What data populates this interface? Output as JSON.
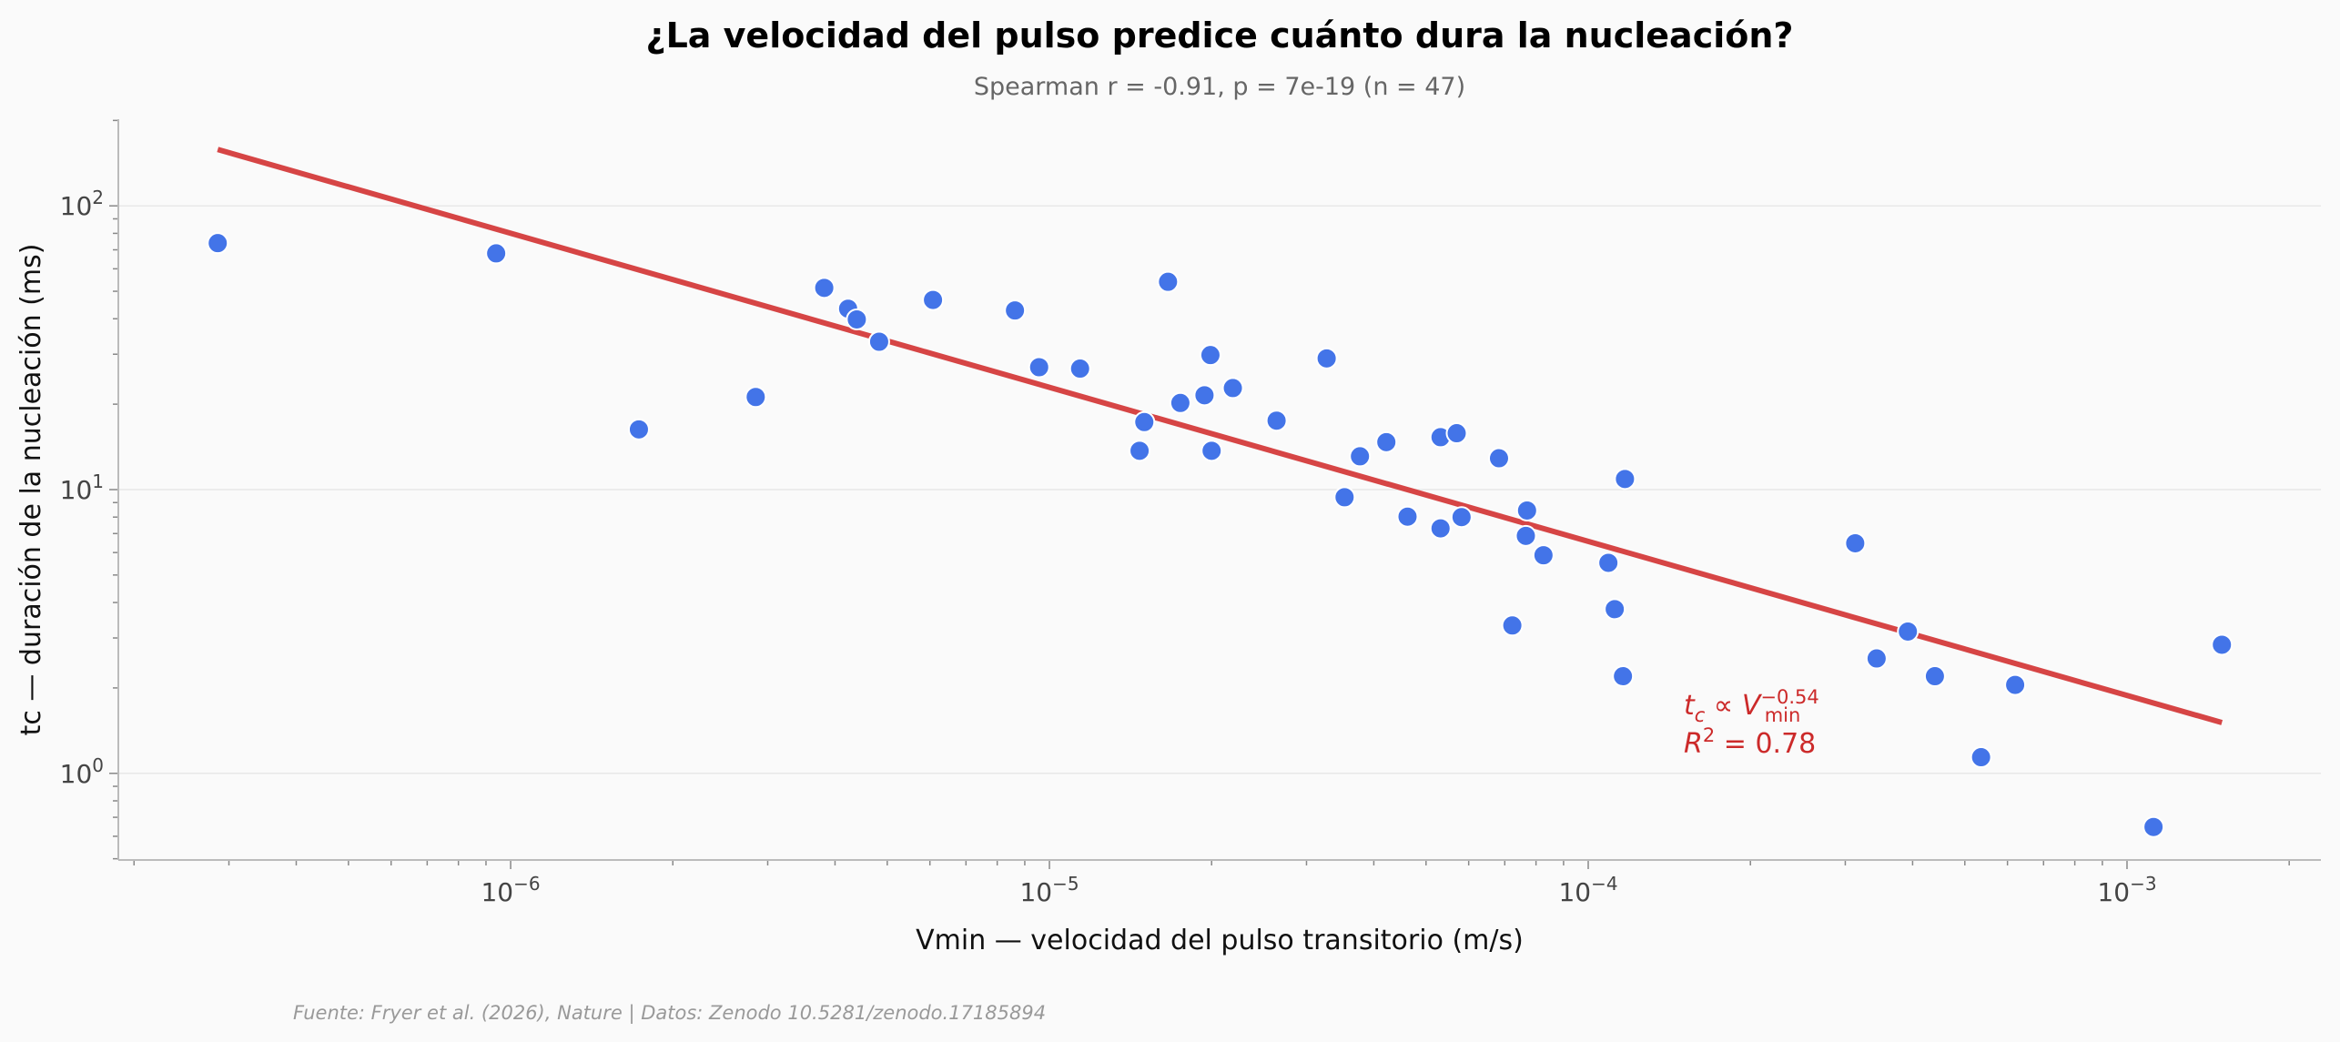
{
  "chart_data": {
    "type": "scatter",
    "title": "¿La velocidad del pulso predice cuánto dura la nucleación?",
    "subtitle": "Spearman r = -0.91, p = 7e-19 (n = 47)",
    "x_label": "Vmin — velocidad del pulso transitorio (m/s)",
    "y_label": "tc — duración de la nucleación (ms)",
    "source": "Fuente: Fryer et al. (2026), Nature | Datos: Zenodo 10.5281/zenodo.17185894",
    "xscale": "log",
    "yscale": "log",
    "grid": true,
    "minor_ticks": true,
    "xlim": [
      1.87e-07,
      0.00229
    ],
    "ylim": [
      0.495,
      202
    ],
    "xticks": [
      {
        "value": 1e-06,
        "label": "10^−6"
      },
      {
        "value": 1e-05,
        "label": "10^−5"
      },
      {
        "value": 0.0001,
        "label": "10^−4"
      },
      {
        "value": 0.001,
        "label": "10^−3"
      }
    ],
    "yticks": [
      {
        "value": 1,
        "label": "10^0"
      },
      {
        "value": 10,
        "label": "10^1"
      },
      {
        "value": 100,
        "label": "10^2"
      }
    ],
    "series": [
      {
        "color": "#4374e8",
        "x": [
          2.86e-07,
          9.4e-07,
          1.73e-06,
          2.85e-06,
          3.82e-06,
          4.23e-06,
          4.39e-06,
          4.83e-06,
          6.08e-06,
          8.63e-06,
          9.57e-06,
          1.14e-05,
          1.66e-05,
          1.47e-05,
          1.5e-05,
          1.75e-05,
          1.94e-05,
          1.99e-05,
          2e-05,
          2.19e-05,
          2.64e-05,
          3.27e-05,
          3.53e-05,
          3.77e-05,
          4.22e-05,
          4.62e-05,
          5.32e-05,
          5.32e-05,
          5.7e-05,
          5.82e-05,
          6.83e-05,
          7.23e-05,
          7.66e-05,
          7.7e-05,
          8.26e-05,
          0.000109,
          0.000112,
          0.000116,
          0.000117,
          0.000313,
          0.000343,
          0.000392,
          0.00044,
          0.000536,
          0.00062,
          0.00112,
          0.0015
        ],
        "values": [
          73.9,
          68,
          16.3,
          21.2,
          51.4,
          43.4,
          39.8,
          33.2,
          46.6,
          42.8,
          27.0,
          26.7,
          54,
          13.7,
          17.3,
          20.2,
          21.5,
          29.8,
          13.7,
          22.8,
          17.5,
          29.0,
          9.4,
          13.1,
          14.7,
          8.03,
          15.3,
          7.3,
          15.8,
          8.0,
          12.9,
          3.32,
          6.87,
          8.44,
          5.87,
          5.52,
          3.79,
          2.2,
          10.9,
          6.47,
          2.54,
          3.16,
          2.2,
          1.14,
          2.05,
          0.647,
          2.84
        ]
      }
    ],
    "fit": {
      "color": "#d64545",
      "x": [
        2.86e-07,
        0.0015
      ],
      "values": [
        158,
        1.51
      ]
    },
    "annotation": {
      "color": "#cc2a2a",
      "lines": [
        [
          {
            "text": "t",
            "style": "italic"
          },
          {
            "text": "c",
            "style": "italic",
            "shift": "sub"
          },
          {
            "text": " ∝ "
          },
          {
            "text": "V",
            "style": "italic"
          },
          {
            "text": "−0.54",
            "shift": "sup"
          },
          {
            "text": "min",
            "shift": "sub"
          }
        ],
        [
          {
            "text": "R",
            "style": "italic"
          },
          {
            "text": "2",
            "shift": "sup"
          },
          {
            "text": " = 0.78"
          }
        ]
      ]
    }
  }
}
